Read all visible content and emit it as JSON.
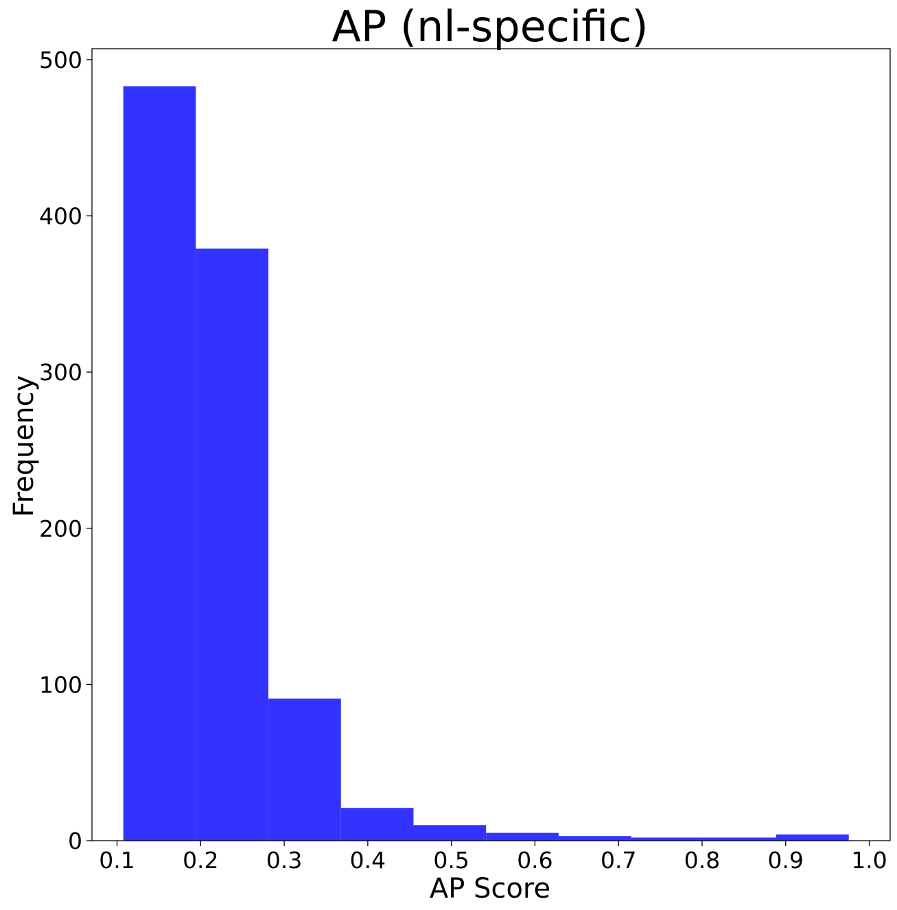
{
  "chart_data": {
    "type": "bar",
    "title": "AP (nl-specific)",
    "xlabel": "AP Score",
    "ylabel": "Frequency",
    "bar_color": "#3333ff",
    "xlim": [
      0.07,
      1.025
    ],
    "ylim": [
      0,
      507
    ],
    "x_ticks": [
      0.1,
      0.2,
      0.3,
      0.4,
      0.5,
      0.6,
      0.7,
      0.8,
      0.9,
      1.0
    ],
    "x_tick_labels": [
      "0.1",
      "0.2",
      "0.3",
      "0.4",
      "0.5",
      "0.6",
      "0.7",
      "0.8",
      "0.9",
      "1.0"
    ],
    "y_ticks": [
      0,
      100,
      200,
      300,
      400,
      500
    ],
    "y_tick_labels": [
      "0",
      "100",
      "200",
      "300",
      "400",
      "500"
    ],
    "bin_edges": [
      0.1075,
      0.1943,
      0.2811,
      0.3679,
      0.4547,
      0.5415,
      0.6283,
      0.7151,
      0.8019,
      0.8887,
      0.9755
    ],
    "values": [
      483,
      379,
      91,
      21,
      10,
      5,
      3,
      2,
      2,
      4
    ]
  }
}
